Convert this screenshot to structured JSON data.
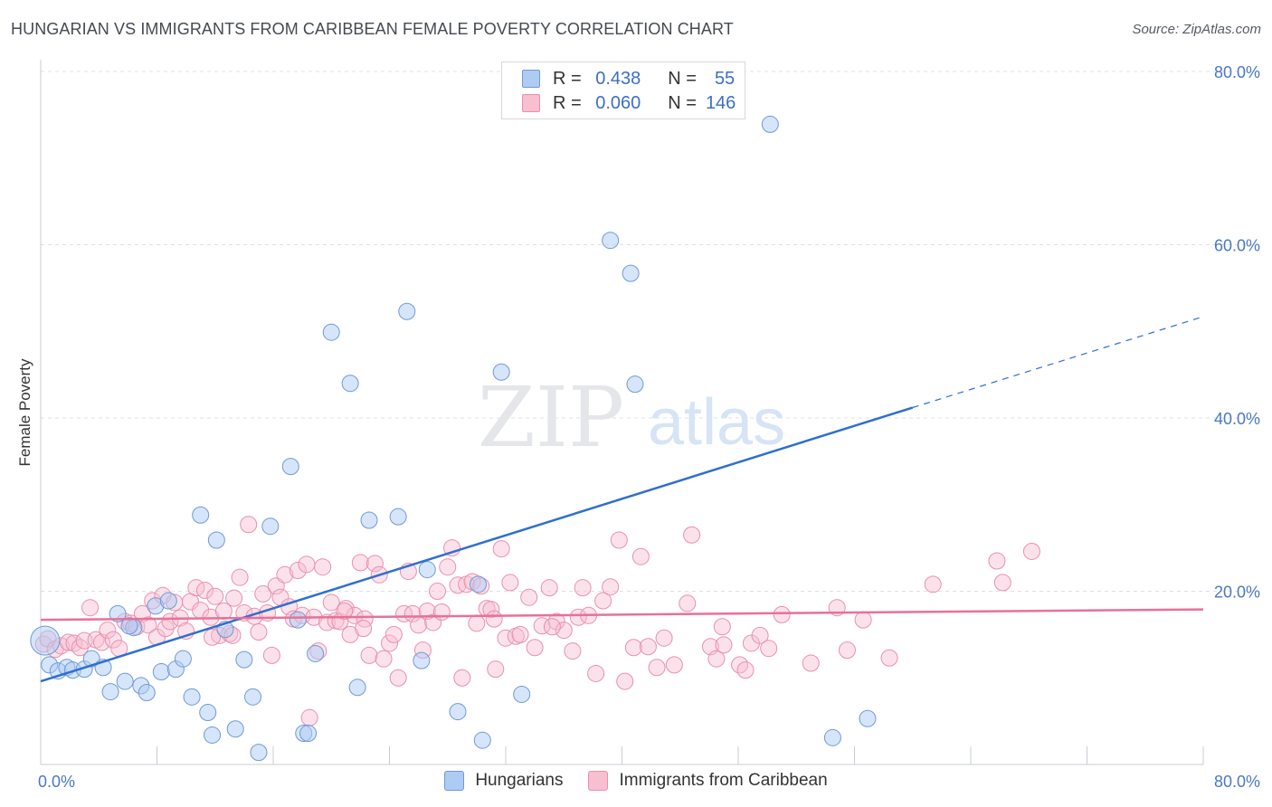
{
  "title": "HUNGARIAN VS IMMIGRANTS FROM CARIBBEAN FEMALE POVERTY CORRELATION CHART",
  "source": "Source: ZipAtlas.com",
  "watermark": {
    "zip": "ZIP",
    "atlas": "atlas"
  },
  "colors": {
    "blue_fill": "#aecbf3",
    "blue_stroke": "#6f9ad6",
    "blue_line": "#2f6fcf",
    "pink_fill": "#f7bfd0",
    "pink_stroke": "#ea8fae",
    "pink_line": "#e8709a",
    "grid": "#dde0e6",
    "tick_text": "#4a78c2"
  },
  "stats": [
    {
      "r_label": "R =",
      "r": "0.438",
      "n_label": "N =",
      "n": "55"
    },
    {
      "r_label": "R =",
      "r": "0.060",
      "n_label": "N =",
      "n": "146"
    }
  ],
  "chart_data": {
    "type": "scatter",
    "title": "HUNGARIAN VS IMMIGRANTS FROM CARIBBEAN FEMALE POVERTY CORRELATION CHART",
    "xlabel": "",
    "ylabel": "Female Poverty",
    "xlim": [
      0,
      80
    ],
    "ylim": [
      0,
      80
    ],
    "x_tick_labels": [
      "0.0%",
      "80.0%"
    ],
    "y_tick_labels": [
      "20.0%",
      "40.0%",
      "60.0%",
      "80.0%"
    ],
    "y_ticks": [
      20,
      40,
      60,
      80
    ],
    "grid": "horizontal dashed",
    "legend_position": "bottom-center",
    "series": [
      {
        "name": "Hungarians",
        "trend": {
          "x": [
            0,
            60
          ],
          "y": [
            9.6,
            41.2
          ],
          "dashed_to": [
            80,
            51.7
          ]
        },
        "points": [
          [
            0.3,
            14.3
          ],
          [
            0.6,
            11.5
          ],
          [
            1.2,
            10.8
          ],
          [
            1.8,
            11.2
          ],
          [
            2.2,
            10.9
          ],
          [
            3.0,
            11.0
          ],
          [
            3.5,
            12.2
          ],
          [
            4.3,
            11.2
          ],
          [
            4.8,
            8.4
          ],
          [
            5.3,
            17.4
          ],
          [
            5.8,
            9.6
          ],
          [
            6.4,
            15.8
          ],
          [
            6.9,
            9.1
          ],
          [
            7.3,
            8.3
          ],
          [
            7.9,
            18.3
          ],
          [
            8.3,
            10.7
          ],
          [
            8.8,
            18.9
          ],
          [
            9.3,
            11.0
          ],
          [
            9.8,
            12.2
          ],
          [
            10.4,
            7.8
          ],
          [
            11.0,
            28.8
          ],
          [
            11.5,
            6.0
          ],
          [
            11.8,
            3.4
          ],
          [
            12.1,
            25.9
          ],
          [
            12.7,
            15.6
          ],
          [
            13.4,
            4.1
          ],
          [
            14.0,
            12.1
          ],
          [
            14.6,
            7.8
          ],
          [
            15.0,
            1.4
          ],
          [
            15.8,
            27.5
          ],
          [
            17.2,
            34.4
          ],
          [
            17.7,
            16.7
          ],
          [
            18.1,
            3.6
          ],
          [
            18.4,
            3.6
          ],
          [
            18.9,
            12.8
          ],
          [
            20.0,
            49.9
          ],
          [
            21.3,
            44.0
          ],
          [
            21.8,
            8.9
          ],
          [
            22.6,
            28.2
          ],
          [
            24.6,
            28.6
          ],
          [
            25.2,
            52.3
          ],
          [
            26.2,
            12.0
          ],
          [
            26.6,
            22.5
          ],
          [
            28.7,
            6.1
          ],
          [
            30.1,
            20.8
          ],
          [
            30.4,
            2.8
          ],
          [
            31.7,
            45.3
          ],
          [
            33.1,
            8.1
          ],
          [
            39.2,
            60.5
          ],
          [
            40.6,
            56.7
          ],
          [
            40.9,
            43.9
          ],
          [
            50.2,
            73.9
          ],
          [
            54.5,
            3.1
          ],
          [
            56.9,
            5.3
          ],
          [
            6.1,
            16.0
          ]
        ]
      },
      {
        "name": "Immigrants from Caribbean",
        "trend": {
          "x": [
            0,
            80
          ],
          "y": [
            16.7,
            17.9
          ]
        },
        "points": [
          [
            0.2,
            13.9
          ],
          [
            0.5,
            14.5
          ],
          [
            1.0,
            13.3
          ],
          [
            1.4,
            13.7
          ],
          [
            1.9,
            14.1
          ],
          [
            2.3,
            14.0
          ],
          [
            2.7,
            13.5
          ],
          [
            3.0,
            14.3
          ],
          [
            3.4,
            18.1
          ],
          [
            3.8,
            14.4
          ],
          [
            4.2,
            14.1
          ],
          [
            4.6,
            15.5
          ],
          [
            5.0,
            14.4
          ],
          [
            5.4,
            13.4
          ],
          [
            5.8,
            16.5
          ],
          [
            6.2,
            16.3
          ],
          [
            6.6,
            15.9
          ],
          [
            7.0,
            17.4
          ],
          [
            7.4,
            16.1
          ],
          [
            7.7,
            18.9
          ],
          [
            8.0,
            14.7
          ],
          [
            8.4,
            19.5
          ],
          [
            8.6,
            15.7
          ],
          [
            8.9,
            16.5
          ],
          [
            9.2,
            18.7
          ],
          [
            9.6,
            16.9
          ],
          [
            10.0,
            15.4
          ],
          [
            10.3,
            18.8
          ],
          [
            10.7,
            20.4
          ],
          [
            11.0,
            17.8
          ],
          [
            11.3,
            20.1
          ],
          [
            11.7,
            17.0
          ],
          [
            12.0,
            19.4
          ],
          [
            12.3,
            14.9
          ],
          [
            12.6,
            17.7
          ],
          [
            13.0,
            15.1
          ],
          [
            13.3,
            19.2
          ],
          [
            13.7,
            21.6
          ],
          [
            14.0,
            17.5
          ],
          [
            14.3,
            27.7
          ],
          [
            14.7,
            17.1
          ],
          [
            15.0,
            15.3
          ],
          [
            15.3,
            19.7
          ],
          [
            15.6,
            17.5
          ],
          [
            15.9,
            12.6
          ],
          [
            16.2,
            20.6
          ],
          [
            16.5,
            19.3
          ],
          [
            16.8,
            21.9
          ],
          [
            17.1,
            18.2
          ],
          [
            17.4,
            16.8
          ],
          [
            17.7,
            22.4
          ],
          [
            18.0,
            17.2
          ],
          [
            18.3,
            23.1
          ],
          [
            18.5,
            5.4
          ],
          [
            18.8,
            17.0
          ],
          [
            19.1,
            13.1
          ],
          [
            19.4,
            22.8
          ],
          [
            19.7,
            16.4
          ],
          [
            20.0,
            18.7
          ],
          [
            20.3,
            16.6
          ],
          [
            20.6,
            16.5
          ],
          [
            21.0,
            18.0
          ],
          [
            21.3,
            15.0
          ],
          [
            21.6,
            17.2
          ],
          [
            22.0,
            23.3
          ],
          [
            22.3,
            16.8
          ],
          [
            22.6,
            12.6
          ],
          [
            23.0,
            23.2
          ],
          [
            23.3,
            21.9
          ],
          [
            23.6,
            12.2
          ],
          [
            24.0,
            14.0
          ],
          [
            24.3,
            15.0
          ],
          [
            24.6,
            10.0
          ],
          [
            25.0,
            17.4
          ],
          [
            25.3,
            22.3
          ],
          [
            25.6,
            17.4
          ],
          [
            26.0,
            16.1
          ],
          [
            26.3,
            13.2
          ],
          [
            26.6,
            17.7
          ],
          [
            27.0,
            16.4
          ],
          [
            27.3,
            20.0
          ],
          [
            27.6,
            17.6
          ],
          [
            28.0,
            22.8
          ],
          [
            28.3,
            25.0
          ],
          [
            28.7,
            20.7
          ],
          [
            29.0,
            10.0
          ],
          [
            29.3,
            20.8
          ],
          [
            29.7,
            21.1
          ],
          [
            30.0,
            16.3
          ],
          [
            30.3,
            20.6
          ],
          [
            30.7,
            18.0
          ],
          [
            31.0,
            17.9
          ],
          [
            31.3,
            11.0
          ],
          [
            31.7,
            24.9
          ],
          [
            32.0,
            14.6
          ],
          [
            32.3,
            21.0
          ],
          [
            32.7,
            14.8
          ],
          [
            33.0,
            15.0
          ],
          [
            33.6,
            19.3
          ],
          [
            34.0,
            13.5
          ],
          [
            34.5,
            16.0
          ],
          [
            35.0,
            20.4
          ],
          [
            35.5,
            16.5
          ],
          [
            36.0,
            15.5
          ],
          [
            36.6,
            13.1
          ],
          [
            37.0,
            17.0
          ],
          [
            37.3,
            20.4
          ],
          [
            37.7,
            17.2
          ],
          [
            38.2,
            10.5
          ],
          [
            38.7,
            18.9
          ],
          [
            39.2,
            20.5
          ],
          [
            39.8,
            25.9
          ],
          [
            40.2,
            9.6
          ],
          [
            40.8,
            13.5
          ],
          [
            41.3,
            24.0
          ],
          [
            41.8,
            13.6
          ],
          [
            42.4,
            11.2
          ],
          [
            42.9,
            14.6
          ],
          [
            43.6,
            11.5
          ],
          [
            44.5,
            18.6
          ],
          [
            44.8,
            26.5
          ],
          [
            46.1,
            13.6
          ],
          [
            46.5,
            12.2
          ],
          [
            47.0,
            13.8
          ],
          [
            48.1,
            11.5
          ],
          [
            48.5,
            10.9
          ],
          [
            48.9,
            14.0
          ],
          [
            49.5,
            14.9
          ],
          [
            50.1,
            13.4
          ],
          [
            51.0,
            17.3
          ],
          [
            53.0,
            11.7
          ],
          [
            54.8,
            18.1
          ],
          [
            55.5,
            13.2
          ],
          [
            56.6,
            16.7
          ],
          [
            58.4,
            12.3
          ],
          [
            61.4,
            20.8
          ],
          [
            65.8,
            23.5
          ],
          [
            66.2,
            21.0
          ],
          [
            68.2,
            24.6
          ],
          [
            11.8,
            14.7
          ],
          [
            13.2,
            14.9
          ],
          [
            20.9,
            17.7
          ],
          [
            22.2,
            15.7
          ],
          [
            31.2,
            16.8
          ],
          [
            35.2,
            15.9
          ],
          [
            46.9,
            15.9
          ]
        ]
      }
    ]
  }
}
